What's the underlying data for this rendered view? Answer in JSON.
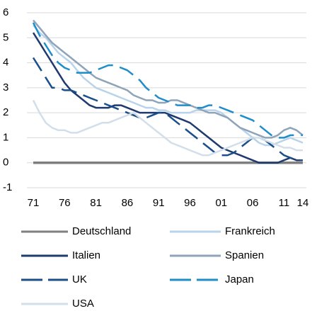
{
  "chart_data": {
    "type": "line",
    "categories": [
      "71",
      null,
      null,
      null,
      null,
      "76",
      null,
      null,
      null,
      null,
      "81",
      null,
      null,
      null,
      null,
      "86",
      null,
      null,
      null,
      null,
      "91",
      null,
      null,
      null,
      null,
      "96",
      null,
      null,
      null,
      null,
      "01",
      null,
      null,
      null,
      null,
      "06",
      null,
      null,
      null,
      null,
      "11",
      null,
      null,
      "14"
    ],
    "ylim": [
      -1,
      6
    ],
    "yticks": [
      -1,
      0,
      1,
      2,
      3,
      4,
      5,
      6
    ],
    "grid": true,
    "legend": "bottom",
    "series": [
      {
        "name": "Deutschland",
        "color": "#7f7f7f",
        "dashed": false,
        "values": [
          0,
          0,
          0,
          0,
          0,
          0,
          0,
          0,
          0,
          0,
          0,
          0,
          0,
          0,
          0,
          0,
          0,
          0,
          0,
          0,
          0,
          0,
          0,
          0,
          0,
          0,
          0,
          0,
          0,
          0,
          0,
          0,
          0,
          0,
          0,
          0,
          0,
          0,
          0,
          0,
          0,
          0,
          0,
          0
        ]
      },
      {
        "name": "Frankreich",
        "color": "#b9d3ea",
        "dashed": false,
        "values": [
          5.5,
          5.2,
          5.0,
          4.7,
          4.4,
          4.2,
          4.0,
          3.7,
          3.4,
          3.2,
          3.0,
          2.9,
          2.8,
          2.7,
          2.6,
          2.5,
          2.4,
          2.3,
          2.2,
          2.2,
          2.1,
          2.1,
          2.0,
          2.0,
          2.0,
          2.0,
          2.1,
          2.1,
          2.1,
          2.1,
          2.0,
          1.8,
          1.6,
          1.4,
          1.2,
          1.0,
          0.8,
          0.7,
          0.7,
          0.8,
          0.9,
          1.0,
          0.9,
          0.8
        ]
      },
      {
        "name": "Italien",
        "color": "#1f3a6e",
        "dashed": false,
        "values": [
          5.2,
          4.8,
          4.4,
          4.0,
          3.6,
          3.2,
          2.9,
          2.7,
          2.5,
          2.3,
          2.2,
          2.2,
          2.2,
          2.3,
          2.3,
          2.2,
          2.1,
          2.0,
          2.0,
          2.0,
          2.0,
          2.0,
          1.9,
          1.8,
          1.7,
          1.6,
          1.4,
          1.2,
          1.0,
          0.8,
          0.6,
          0.5,
          0.4,
          0.3,
          0.2,
          0.1,
          0.0,
          0.0,
          0.0,
          0.0,
          0.1,
          0.2,
          0.1,
          0.1
        ]
      },
      {
        "name": "Spanien",
        "color": "#8fa3b9",
        "dashed": false,
        "values": [
          5.7,
          5.4,
          5.1,
          4.8,
          4.6,
          4.4,
          4.2,
          4.0,
          3.8,
          3.6,
          3.4,
          3.3,
          3.2,
          3.1,
          3.0,
          2.9,
          2.7,
          2.6,
          2.5,
          2.5,
          2.4,
          2.4,
          2.5,
          2.5,
          2.4,
          2.3,
          2.2,
          2.1,
          2.0,
          2.0,
          1.9,
          1.8,
          1.6,
          1.4,
          1.3,
          1.2,
          1.1,
          1.0,
          1.0,
          1.1,
          1.3,
          1.4,
          1.3,
          1.1
        ]
      },
      {
        "name": "UK",
        "color": "#1a4f8a",
        "dashed": true,
        "values": [
          4.2,
          3.8,
          3.4,
          3.0,
          3.0,
          2.9,
          2.9,
          2.8,
          2.7,
          2.6,
          2.5,
          2.4,
          2.3,
          2.2,
          2.1,
          2.0,
          1.9,
          1.8,
          1.8,
          1.9,
          2.0,
          2.0,
          1.8,
          1.6,
          1.4,
          1.2,
          1.0,
          0.8,
          0.6,
          0.4,
          0.3,
          0.3,
          0.4,
          0.6,
          0.8,
          1.0,
          1.0,
          0.9,
          0.7,
          0.5,
          0.3,
          0.2,
          0.1,
          0.1
        ]
      },
      {
        "name": "Japan",
        "color": "#1f8dc9",
        "dashed": true,
        "values": [
          5.6,
          5.1,
          4.7,
          4.3,
          4.0,
          3.8,
          3.7,
          3.6,
          3.6,
          3.6,
          3.7,
          3.8,
          3.9,
          3.9,
          3.8,
          3.7,
          3.5,
          3.3,
          3.0,
          2.8,
          2.6,
          2.5,
          2.4,
          2.3,
          2.3,
          2.3,
          2.2,
          2.2,
          2.3,
          2.3,
          2.2,
          2.1,
          2.0,
          1.9,
          1.8,
          1.7,
          1.5,
          1.3,
          1.1,
          1.0,
          1.0,
          1.1,
          1.1,
          1.1
        ]
      },
      {
        "name": "USA",
        "color": "#d2dfeb",
        "dashed": false,
        "values": [
          2.5,
          2.0,
          1.6,
          1.4,
          1.3,
          1.3,
          1.2,
          1.2,
          1.3,
          1.4,
          1.5,
          1.6,
          1.6,
          1.7,
          1.8,
          1.9,
          2.0,
          1.8,
          1.6,
          1.4,
          1.2,
          1.0,
          0.8,
          0.7,
          0.6,
          0.5,
          0.4,
          0.3,
          0.3,
          0.4,
          0.5,
          0.6,
          0.7,
          0.8,
          0.9,
          1.0,
          1.0,
          0.9,
          0.8,
          0.7,
          0.6,
          0.6,
          0.5,
          0.5
        ]
      }
    ]
  }
}
